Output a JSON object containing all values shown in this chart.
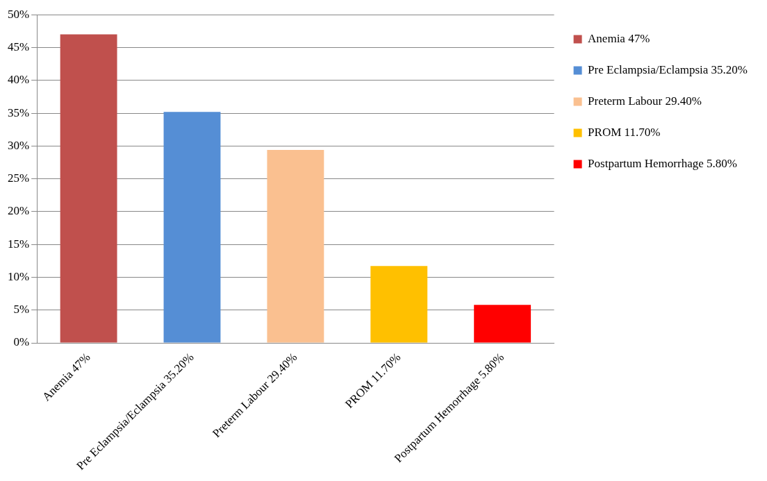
{
  "chart_data": {
    "type": "bar",
    "categories": [
      "Anemia 47%",
      "Pre Eclampsia/Eclampsia 35.20%",
      "Preterm Labour 29.40%",
      "PROM 11.70%",
      "Postpartum Hemorrhage 5.80%"
    ],
    "series": [
      {
        "name": "Anemia 47%",
        "color": "#c0504d",
        "values": [
          47,
          null,
          null,
          null,
          null
        ]
      },
      {
        "name": "Pre Eclampsia/Eclampsia 35.20%",
        "color": "#558ed5",
        "values": [
          null,
          35.2,
          null,
          null,
          null
        ]
      },
      {
        "name": "Preterm Labour 29.40%",
        "color": "#fac090",
        "values": [
          null,
          null,
          29.4,
          null,
          null
        ]
      },
      {
        "name": "PROM 11.70%",
        "color": "#ffc000",
        "values": [
          null,
          null,
          null,
          11.7,
          null
        ]
      },
      {
        "name": "Postpartum Hemorrhage 5.80%",
        "color": "#ff0000",
        "values": [
          null,
          null,
          null,
          null,
          5.8
        ]
      }
    ],
    "stacked": true,
    "ylim": [
      0,
      50
    ],
    "yticks": [
      {
        "value": 0,
        "label": "0%"
      },
      {
        "value": 5,
        "label": "5%"
      },
      {
        "value": 10,
        "label": "10%"
      },
      {
        "value": 15,
        "label": "15%"
      },
      {
        "value": 20,
        "label": "20%"
      },
      {
        "value": 25,
        "label": "25%"
      },
      {
        "value": 30,
        "label": "30%"
      },
      {
        "value": 35,
        "label": "35%"
      },
      {
        "value": 40,
        "label": "40%"
      },
      {
        "value": 45,
        "label": "45%"
      },
      {
        "value": 50,
        "label": "50%"
      }
    ],
    "grid": "y",
    "legend": "right"
  }
}
